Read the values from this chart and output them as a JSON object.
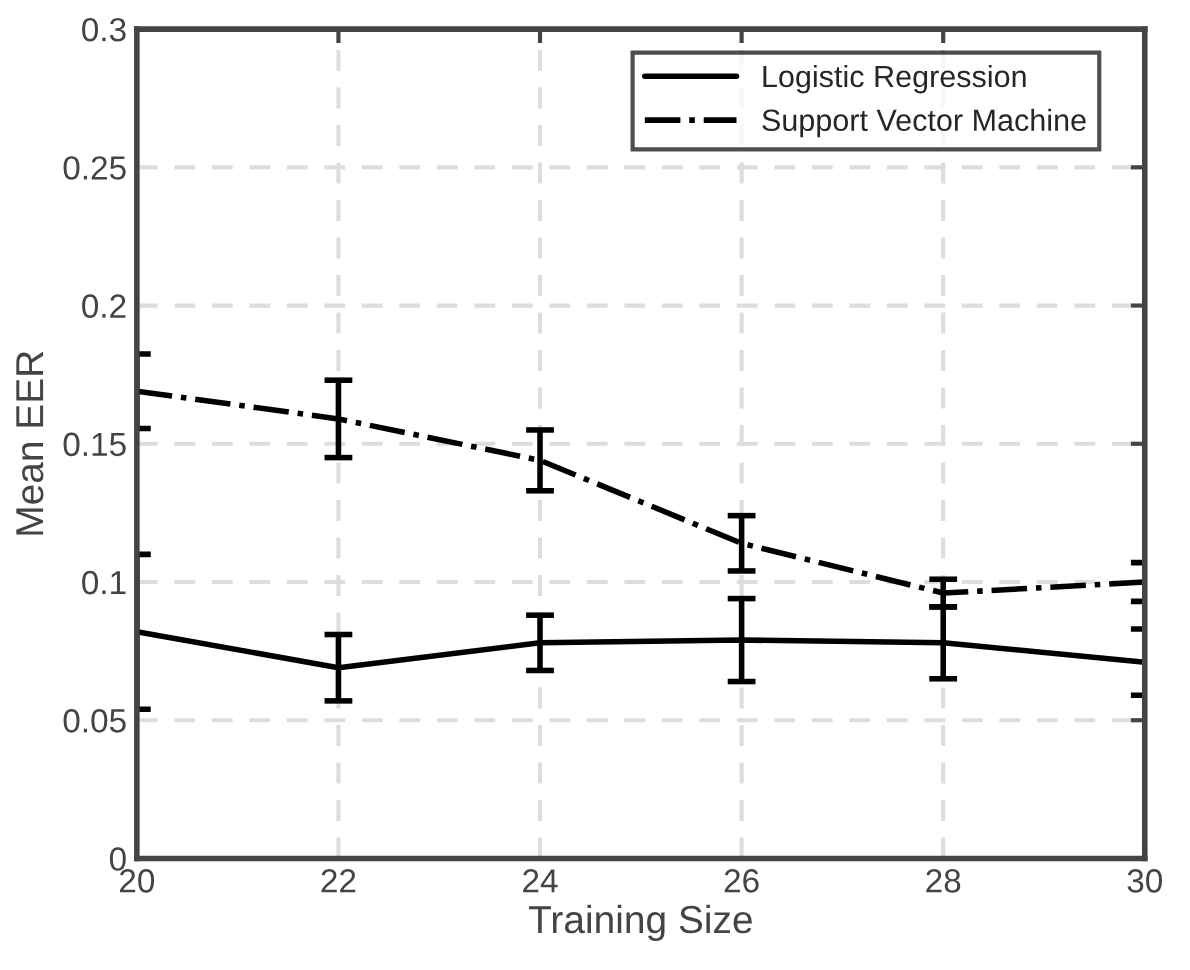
{
  "chart_data": {
    "type": "line",
    "xlabel": "Training Size",
    "ylabel": "Mean EER",
    "x": [
      20,
      22,
      24,
      26,
      28,
      30
    ],
    "series": [
      {
        "name": "Logistic Regression",
        "color": "#000000",
        "line_style": "solid",
        "values": [
          0.082,
          0.069,
          0.078,
          0.079,
          0.078,
          0.071
        ],
        "errors": [
          0.028,
          0.012,
          0.01,
          0.015,
          0.013,
          0.012
        ]
      },
      {
        "name": "Support Vector Machine",
        "color": "#000000",
        "line_style": "dashdot",
        "values": [
          0.169,
          0.159,
          0.144,
          0.114,
          0.096,
          0.1
        ],
        "errors": [
          0.0135,
          0.014,
          0.011,
          0.01,
          0.005,
          0.007
        ]
      }
    ],
    "xlim": [
      20,
      30
    ],
    "xticks": [
      20,
      22,
      24,
      26,
      28,
      30
    ],
    "ylim": [
      0,
      0.3
    ],
    "yticks": [
      0,
      0.05,
      0.1,
      0.15,
      0.2,
      0.25,
      0.3
    ],
    "grid": true,
    "legend": "top right",
    "marker": "none"
  }
}
